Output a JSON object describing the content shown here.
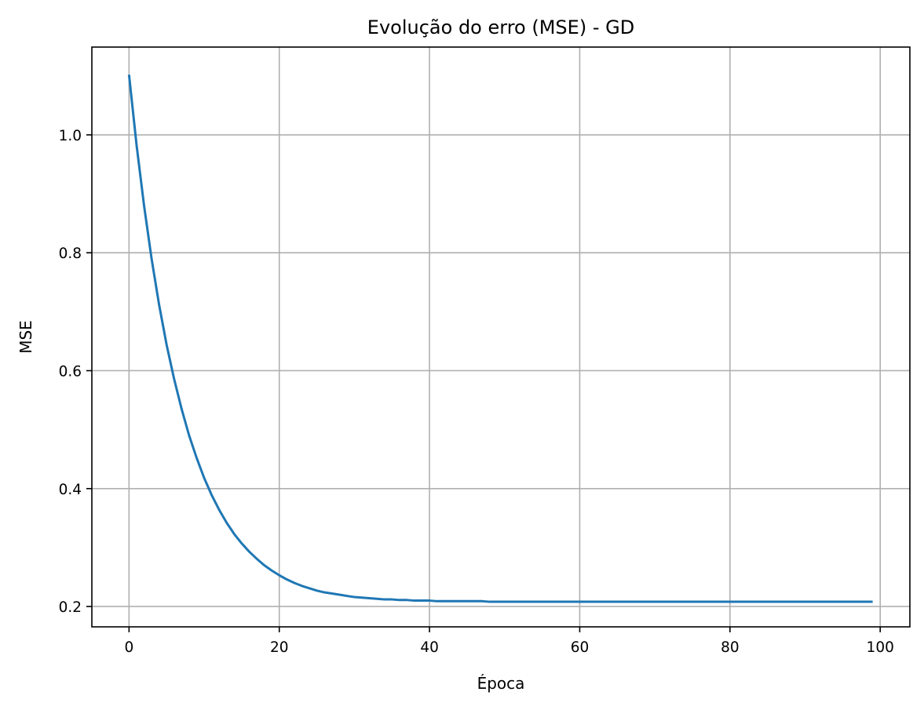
{
  "chart_data": {
    "type": "line",
    "title": "Evolução do erro (MSE) - GD",
    "xlabel": "Época",
    "ylabel": "MSE",
    "xlim": [
      -4.95,
      103.95
    ],
    "ylim": [
      0.1655,
      1.1489
    ],
    "x_ticks": [
      0,
      20,
      40,
      60,
      80,
      100
    ],
    "x_tick_labels": [
      "0",
      "20",
      "40",
      "60",
      "80",
      "100"
    ],
    "y_ticks": [
      0.2,
      0.4,
      0.6,
      0.8,
      1.0
    ],
    "y_tick_labels": [
      "0.2",
      "0.4",
      "0.6",
      "0.8",
      "1.0"
    ],
    "grid": true,
    "series": [
      {
        "color": "#1f77b4",
        "x": [
          0,
          1,
          2,
          3,
          4,
          5,
          6,
          7,
          8,
          9,
          10,
          11,
          12,
          13,
          14,
          15,
          16,
          17,
          18,
          19,
          20,
          21,
          22,
          23,
          24,
          25,
          26,
          27,
          28,
          29,
          30,
          31,
          32,
          33,
          34,
          35,
          36,
          37,
          38,
          39,
          40,
          41,
          42,
          43,
          44,
          45,
          46,
          47,
          48,
          49,
          50,
          51,
          52,
          53,
          54,
          55,
          56,
          57,
          58,
          59,
          60,
          61,
          62,
          63,
          64,
          65,
          66,
          67,
          68,
          69,
          70,
          71,
          72,
          73,
          74,
          75,
          76,
          77,
          78,
          79,
          80,
          81,
          82,
          83,
          84,
          85,
          86,
          87,
          88,
          89,
          90,
          91,
          92,
          93,
          94,
          95,
          96,
          97,
          98,
          99
        ],
        "y": [
          1.102,
          0.983,
          0.88,
          0.79,
          0.712,
          0.644,
          0.586,
          0.535,
          0.49,
          0.452,
          0.418,
          0.389,
          0.364,
          0.342,
          0.323,
          0.307,
          0.293,
          0.281,
          0.27,
          0.261,
          0.253,
          0.246,
          0.24,
          0.235,
          0.231,
          0.227,
          0.224,
          0.222,
          0.22,
          0.218,
          0.216,
          0.215,
          0.214,
          0.213,
          0.212,
          0.212,
          0.211,
          0.211,
          0.21,
          0.21,
          0.21,
          0.209,
          0.209,
          0.209,
          0.209,
          0.209,
          0.209,
          0.209,
          0.208,
          0.208,
          0.208,
          0.208,
          0.208,
          0.208,
          0.208,
          0.208,
          0.208,
          0.208,
          0.208,
          0.208,
          0.208,
          0.208,
          0.208,
          0.208,
          0.208,
          0.208,
          0.208,
          0.208,
          0.208,
          0.208,
          0.208,
          0.208,
          0.208,
          0.208,
          0.208,
          0.208,
          0.208,
          0.208,
          0.208,
          0.208,
          0.208,
          0.208,
          0.208,
          0.208,
          0.208,
          0.208,
          0.208,
          0.208,
          0.208,
          0.208,
          0.208,
          0.208,
          0.208,
          0.208,
          0.208,
          0.208,
          0.208,
          0.208,
          0.208,
          0.208
        ]
      }
    ]
  }
}
